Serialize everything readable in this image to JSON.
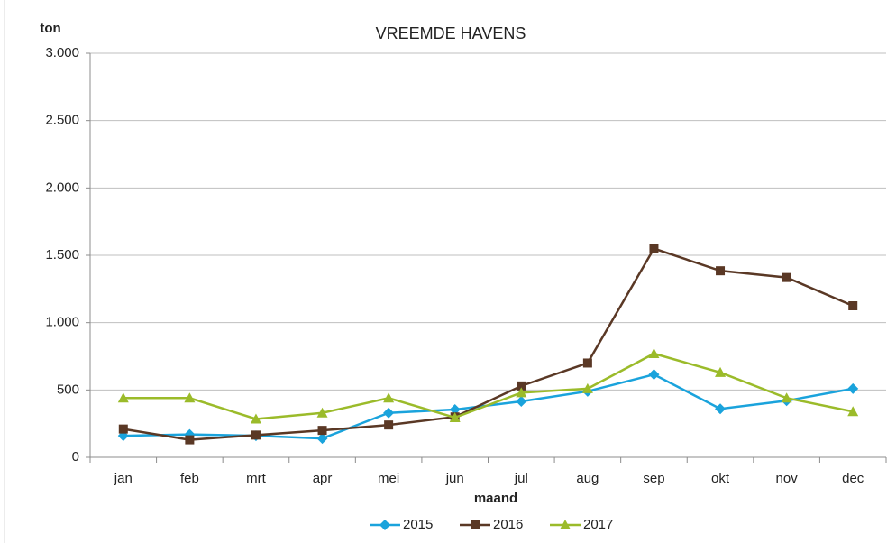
{
  "chart_data": {
    "type": "line",
    "title": "VREEMDE HAVENS",
    "y_label": "ton",
    "x_label": "maand",
    "categories": [
      "jan",
      "feb",
      "mrt",
      "apr",
      "mei",
      "jun",
      "jul",
      "aug",
      "sep",
      "okt",
      "nov",
      "dec"
    ],
    "series": [
      {
        "name": "2015",
        "color": "#1aa3dc",
        "marker": "diamond",
        "values": [
          160,
          170,
          160,
          140,
          330,
          355,
          415,
          490,
          615,
          360,
          420,
          510
        ]
      },
      {
        "name": "2016",
        "color": "#5a3825",
        "marker": "square",
        "values": [
          210,
          130,
          165,
          200,
          240,
          300,
          530,
          700,
          1550,
          1385,
          1335,
          1125
        ]
      },
      {
        "name": "2017",
        "color": "#9bbb2a",
        "marker": "triangle",
        "values": [
          440,
          440,
          285,
          330,
          440,
          295,
          480,
          510,
          770,
          630,
          440,
          340
        ]
      }
    ],
    "ylim": [
      0,
      3000
    ],
    "yticks": [
      0,
      500,
      {
        "value": 1000,
        "label": "1.000"
      },
      {
        "value": 1500,
        "label": "1.500"
      },
      {
        "value": 2000,
        "label": "2.000"
      },
      {
        "value": 2500,
        "label": "2.500"
      },
      {
        "value": 3000,
        "label": "3.000"
      }
    ],
    "grid": true,
    "legend": "bottom"
  }
}
